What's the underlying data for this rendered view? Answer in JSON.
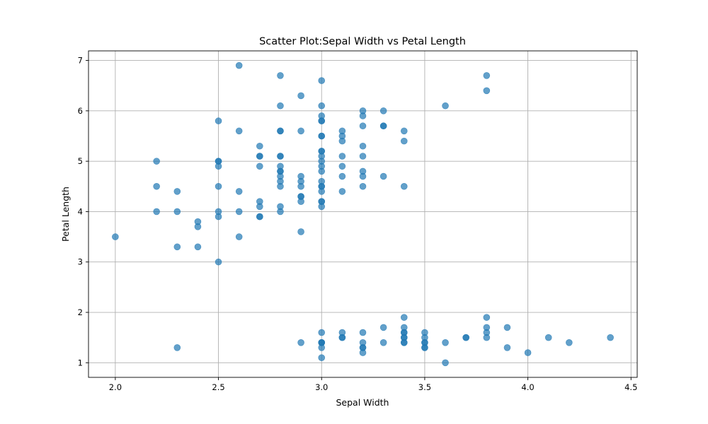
{
  "chart_data": {
    "type": "scatter",
    "title": "Scatter Plot:Sepal Width vs Petal Length",
    "xlabel": "Sepal Width",
    "ylabel": "Petal Length",
    "xlim": [
      1.87,
      4.53
    ],
    "ylim": [
      0.71,
      7.19
    ],
    "xticks": [
      2.0,
      2.5,
      3.0,
      3.5,
      4.0,
      4.5
    ],
    "xtick_labels": [
      "2.0",
      "2.5",
      "3.0",
      "3.5",
      "4.0",
      "4.5"
    ],
    "yticks": [
      1,
      2,
      3,
      4,
      5,
      6,
      7
    ],
    "ytick_labels": [
      "1",
      "2",
      "3",
      "4",
      "5",
      "6",
      "7"
    ],
    "grid": true,
    "marker_color": "#1f77b4",
    "marker_alpha": 0.7,
    "points": [
      [
        2.0,
        3.5
      ],
      [
        2.2,
        5.0
      ],
      [
        2.2,
        4.5
      ],
      [
        2.2,
        4.0
      ],
      [
        2.3,
        4.4
      ],
      [
        2.3,
        4.0
      ],
      [
        2.3,
        3.3
      ],
      [
        2.3,
        1.3
      ],
      [
        2.4,
        3.8
      ],
      [
        2.4,
        3.7
      ],
      [
        2.4,
        3.3
      ],
      [
        2.5,
        5.8
      ],
      [
        2.5,
        5.0
      ],
      [
        2.5,
        5.0
      ],
      [
        2.5,
        4.9
      ],
      [
        2.5,
        4.5
      ],
      [
        2.5,
        4.0
      ],
      [
        2.5,
        3.9
      ],
      [
        2.5,
        3.0
      ],
      [
        2.6,
        6.9
      ],
      [
        2.6,
        5.6
      ],
      [
        2.6,
        4.4
      ],
      [
        2.6,
        4.0
      ],
      [
        2.6,
        3.5
      ],
      [
        2.7,
        5.3
      ],
      [
        2.7,
        5.1
      ],
      [
        2.7,
        5.1
      ],
      [
        2.7,
        4.9
      ],
      [
        2.7,
        4.2
      ],
      [
        2.7,
        4.1
      ],
      [
        2.7,
        3.9
      ],
      [
        2.7,
        3.9
      ],
      [
        2.8,
        6.7
      ],
      [
        2.8,
        6.1
      ],
      [
        2.8,
        5.6
      ],
      [
        2.8,
        5.6
      ],
      [
        2.8,
        5.1
      ],
      [
        2.8,
        5.1
      ],
      [
        2.8,
        4.9
      ],
      [
        2.8,
        4.8
      ],
      [
        2.8,
        4.8
      ],
      [
        2.8,
        4.7
      ],
      [
        2.8,
        4.6
      ],
      [
        2.8,
        4.5
      ],
      [
        2.8,
        4.1
      ],
      [
        2.8,
        4.0
      ],
      [
        2.9,
        6.3
      ],
      [
        2.9,
        5.6
      ],
      [
        2.9,
        4.7
      ],
      [
        2.9,
        4.6
      ],
      [
        2.9,
        4.5
      ],
      [
        2.9,
        4.3
      ],
      [
        2.9,
        4.3
      ],
      [
        2.9,
        4.2
      ],
      [
        2.9,
        3.6
      ],
      [
        2.9,
        1.4
      ],
      [
        3.0,
        6.6
      ],
      [
        3.0,
        6.1
      ],
      [
        3.0,
        5.9
      ],
      [
        3.0,
        5.8
      ],
      [
        3.0,
        5.8
      ],
      [
        3.0,
        5.5
      ],
      [
        3.0,
        5.5
      ],
      [
        3.0,
        5.2
      ],
      [
        3.0,
        5.2
      ],
      [
        3.0,
        5.1
      ],
      [
        3.0,
        5.0
      ],
      [
        3.0,
        4.9
      ],
      [
        3.0,
        4.8
      ],
      [
        3.0,
        4.6
      ],
      [
        3.0,
        4.5
      ],
      [
        3.0,
        4.5
      ],
      [
        3.0,
        4.4
      ],
      [
        3.0,
        4.2
      ],
      [
        3.0,
        4.2
      ],
      [
        3.0,
        4.1
      ],
      [
        3.0,
        1.6
      ],
      [
        3.0,
        1.4
      ],
      [
        3.0,
        1.4
      ],
      [
        3.0,
        1.4
      ],
      [
        3.0,
        1.3
      ],
      [
        3.0,
        1.1
      ],
      [
        3.1,
        5.6
      ],
      [
        3.1,
        5.5
      ],
      [
        3.1,
        5.4
      ],
      [
        3.1,
        5.1
      ],
      [
        3.1,
        4.9
      ],
      [
        3.1,
        4.7
      ],
      [
        3.1,
        4.4
      ],
      [
        3.1,
        1.6
      ],
      [
        3.1,
        1.5
      ],
      [
        3.1,
        1.5
      ],
      [
        3.2,
        6.0
      ],
      [
        3.2,
        5.9
      ],
      [
        3.2,
        5.7
      ],
      [
        3.2,
        5.3
      ],
      [
        3.2,
        5.1
      ],
      [
        3.2,
        4.8
      ],
      [
        3.2,
        4.7
      ],
      [
        3.2,
        4.5
      ],
      [
        3.2,
        1.6
      ],
      [
        3.2,
        1.4
      ],
      [
        3.2,
        1.3
      ],
      [
        3.2,
        1.3
      ],
      [
        3.2,
        1.2
      ],
      [
        3.3,
        6.0
      ],
      [
        3.3,
        5.7
      ],
      [
        3.3,
        5.7
      ],
      [
        3.3,
        4.7
      ],
      [
        3.3,
        1.7
      ],
      [
        3.3,
        1.4
      ],
      [
        3.4,
        5.6
      ],
      [
        3.4,
        5.4
      ],
      [
        3.4,
        4.5
      ],
      [
        3.4,
        1.9
      ],
      [
        3.4,
        1.7
      ],
      [
        3.4,
        1.6
      ],
      [
        3.4,
        1.6
      ],
      [
        3.4,
        1.5
      ],
      [
        3.4,
        1.5
      ],
      [
        3.4,
        1.4
      ],
      [
        3.4,
        1.4
      ],
      [
        3.5,
        1.6
      ],
      [
        3.5,
        1.5
      ],
      [
        3.5,
        1.4
      ],
      [
        3.5,
        1.4
      ],
      [
        3.5,
        1.3
      ],
      [
        3.5,
        1.3
      ],
      [
        3.6,
        6.1
      ],
      [
        3.6,
        1.4
      ],
      [
        3.6,
        1.0
      ],
      [
        3.7,
        1.5
      ],
      [
        3.7,
        1.5
      ],
      [
        3.8,
        6.7
      ],
      [
        3.8,
        6.4
      ],
      [
        3.8,
        1.9
      ],
      [
        3.8,
        1.7
      ],
      [
        3.8,
        1.6
      ],
      [
        3.8,
        1.5
      ],
      [
        3.9,
        1.7
      ],
      [
        3.9,
        1.3
      ],
      [
        4.0,
        1.2
      ],
      [
        4.1,
        1.5
      ],
      [
        4.2,
        1.4
      ],
      [
        4.4,
        1.5
      ]
    ]
  }
}
